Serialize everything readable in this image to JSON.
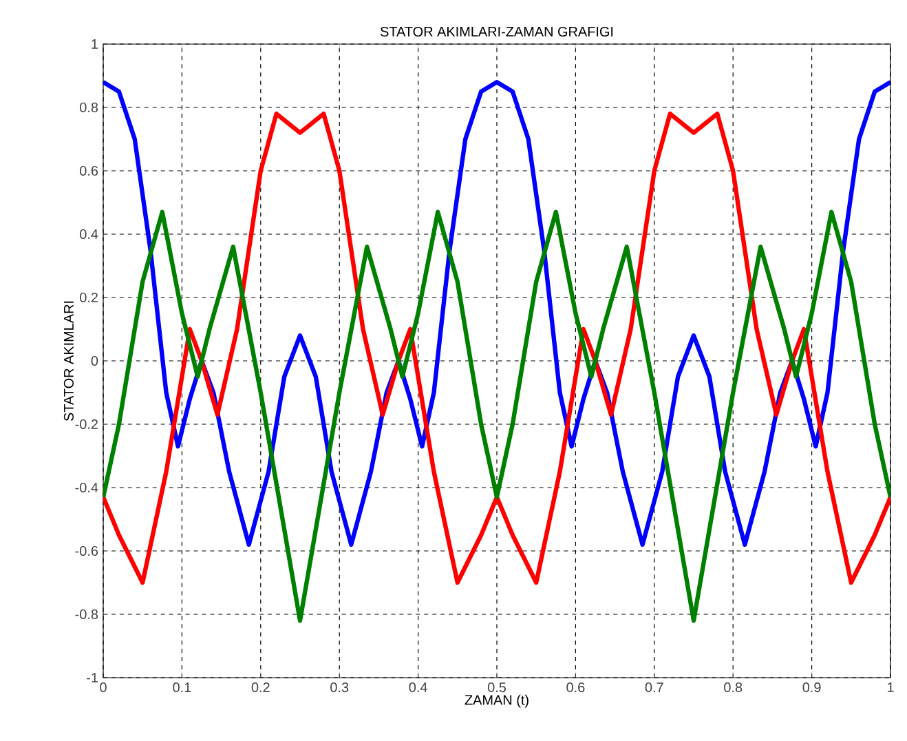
{
  "chart_data": {
    "type": "line",
    "title": "STATOR AKIMLARI-ZAMAN GRAFIGI",
    "xlabel": "ZAMAN (t)",
    "ylabel": "STATOR AKIMLARI",
    "xlim": [
      0,
      1
    ],
    "ylim": [
      -1,
      1
    ],
    "xticks": [
      0,
      0.1,
      0.2,
      0.3,
      0.4,
      0.5,
      0.6,
      0.7,
      0.8,
      0.9,
      1
    ],
    "yticks": [
      -1,
      -0.8,
      -0.6,
      -0.4,
      -0.2,
      0,
      0.2,
      0.4,
      0.6,
      0.8,
      1
    ],
    "grid": true,
    "line_style": "solid",
    "marker": "none",
    "series": [
      {
        "color": "#0000ff",
        "x": [
          0,
          0.02,
          0.04,
          0.06,
          0.08,
          0.095,
          0.11,
          0.125,
          0.14,
          0.16,
          0.185,
          0.21,
          0.23,
          0.25,
          0.27,
          0.29,
          0.315,
          0.34,
          0.36,
          0.375,
          0.39,
          0.405,
          0.42,
          0.44,
          0.46,
          0.48,
          0.5,
          0.52,
          0.54,
          0.56,
          0.58,
          0.595,
          0.61,
          0.625,
          0.64,
          0.66,
          0.685,
          0.71,
          0.73,
          0.75,
          0.77,
          0.79,
          0.815,
          0.84,
          0.86,
          0.875,
          0.89,
          0.905,
          0.92,
          0.94,
          0.96,
          0.98,
          1
        ],
        "values": [
          0.88,
          0.85,
          0.7,
          0.35,
          -0.1,
          -0.27,
          -0.12,
          0.0,
          -0.1,
          -0.35,
          -0.58,
          -0.35,
          -0.05,
          0.08,
          -0.05,
          -0.35,
          -0.58,
          -0.35,
          -0.1,
          0.0,
          -0.12,
          -0.27,
          -0.1,
          0.35,
          0.7,
          0.85,
          0.88,
          0.85,
          0.7,
          0.35,
          -0.1,
          -0.27,
          -0.12,
          0.0,
          -0.1,
          -0.35,
          -0.58,
          -0.35,
          -0.05,
          0.08,
          -0.05,
          -0.35,
          -0.58,
          -0.35,
          -0.1,
          0.0,
          -0.12,
          -0.27,
          -0.1,
          0.35,
          0.7,
          0.85,
          0.88
        ]
      },
      {
        "color": "#ff0000",
        "x": [
          0,
          0.02,
          0.05,
          0.08,
          0.11,
          0.125,
          0.145,
          0.17,
          0.2,
          0.22,
          0.25,
          0.28,
          0.3,
          0.33,
          0.355,
          0.375,
          0.39,
          0.42,
          0.45,
          0.48,
          0.5,
          0.52,
          0.55,
          0.58,
          0.61,
          0.625,
          0.645,
          0.67,
          0.7,
          0.72,
          0.75,
          0.78,
          0.8,
          0.83,
          0.855,
          0.875,
          0.89,
          0.92,
          0.95,
          0.98,
          1
        ],
        "values": [
          -0.43,
          -0.55,
          -0.7,
          -0.35,
          0.1,
          0.0,
          -0.17,
          0.1,
          0.6,
          0.78,
          0.72,
          0.78,
          0.6,
          0.1,
          -0.17,
          0.0,
          0.1,
          -0.35,
          -0.7,
          -0.55,
          -0.43,
          -0.55,
          -0.7,
          -0.35,
          0.1,
          0.0,
          -0.17,
          0.1,
          0.6,
          0.78,
          0.72,
          0.78,
          0.6,
          0.1,
          -0.17,
          0.0,
          0.1,
          -0.35,
          -0.7,
          -0.55,
          -0.43
        ]
      },
      {
        "color": "#008000",
        "x": [
          0,
          0.02,
          0.05,
          0.075,
          0.1,
          0.12,
          0.135,
          0.165,
          0.2,
          0.25,
          0.3,
          0.335,
          0.365,
          0.38,
          0.4,
          0.425,
          0.45,
          0.48,
          0.5,
          0.52,
          0.55,
          0.575,
          0.6,
          0.62,
          0.635,
          0.665,
          0.7,
          0.75,
          0.8,
          0.835,
          0.865,
          0.88,
          0.9,
          0.925,
          0.95,
          0.98,
          1
        ],
        "values": [
          -0.43,
          -0.2,
          0.25,
          0.47,
          0.15,
          -0.05,
          0.1,
          0.36,
          -0.1,
          -0.82,
          -0.1,
          0.36,
          0.1,
          -0.05,
          0.15,
          0.47,
          0.25,
          -0.2,
          -0.43,
          -0.2,
          0.25,
          0.47,
          0.15,
          -0.05,
          0.1,
          0.36,
          -0.1,
          -0.82,
          -0.1,
          0.36,
          0.1,
          -0.05,
          0.15,
          0.47,
          0.25,
          -0.2,
          -0.43
        ]
      }
    ]
  }
}
